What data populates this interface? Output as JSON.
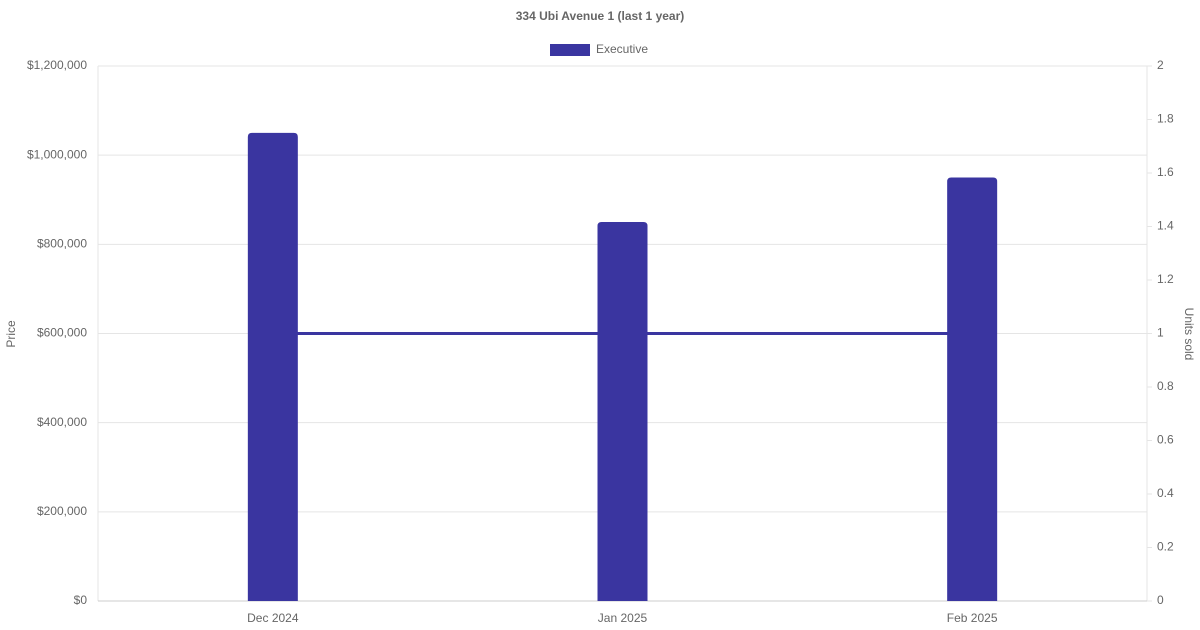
{
  "chart_data": {
    "type": "bar",
    "title": "334 Ubi Avenue 1 (last 1 year)",
    "categories": [
      "Dec 2024",
      "Jan 2025",
      "Feb 2025"
    ],
    "series": [
      {
        "name": "Executive",
        "type": "bar",
        "color": "#3a35a0",
        "values": [
          1050000,
          850000,
          950000
        ]
      },
      {
        "type": "line",
        "axis": "y2",
        "color": "#3a35a0",
        "values": [
          1,
          1,
          1
        ]
      }
    ],
    "ylabel": "Price",
    "y2label": "Units sold",
    "ylim": [
      0,
      1200000
    ],
    "yticks": [
      {
        "value": 0,
        "label": "$0"
      },
      {
        "value": 200000,
        "label": "$200,000"
      },
      {
        "value": 400000,
        "label": "$400,000"
      },
      {
        "value": 600000,
        "label": "$600,000"
      },
      {
        "value": 800000,
        "label": "$800,000"
      },
      {
        "value": 1000000,
        "label": "$1,000,000"
      },
      {
        "value": 1200000,
        "label": "$1,200,000"
      }
    ],
    "y2lim": [
      0,
      2
    ],
    "y2ticks": [
      0,
      0.2,
      0.4,
      0.6,
      0.8,
      1,
      1.2,
      1.4,
      1.6,
      1.8,
      2
    ],
    "grid": true,
    "legend": "top"
  }
}
